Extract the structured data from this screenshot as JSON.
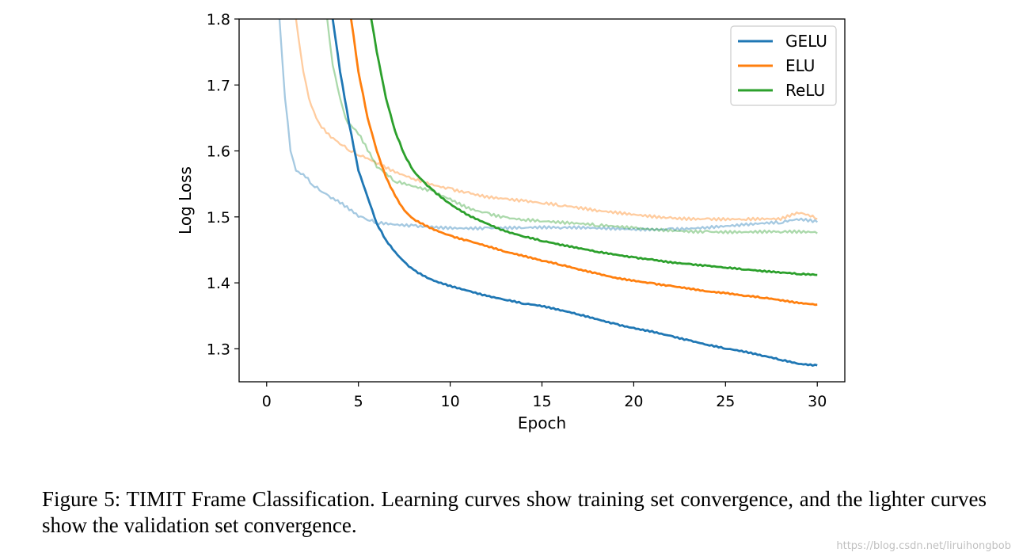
{
  "chart_data": {
    "type": "line",
    "title": "",
    "xlabel": "Epoch",
    "ylabel": "Log Loss",
    "xlim": [
      -1.5,
      31.5
    ],
    "ylim": [
      1.25,
      1.8
    ],
    "xticks": [
      0,
      5,
      10,
      15,
      20,
      25,
      30
    ],
    "yticks": [
      1.3,
      1.4,
      1.5,
      1.6,
      1.7,
      1.8
    ],
    "ytick_labels": [
      "1.3",
      "1.4",
      "1.5",
      "1.6",
      "1.7",
      "1.8"
    ],
    "legend_placement": "top-right",
    "grid": false,
    "series": [
      {
        "name": "GELU",
        "role": "training",
        "color": "#1f77b4",
        "x": [
          3.6,
          4.0,
          4.5,
          5.0,
          5.5,
          6.0,
          6.5,
          7.0,
          7.5,
          8.0,
          9.0,
          10.0,
          11.0,
          12.0,
          13.0,
          14.0,
          15.0,
          16.0,
          17.0,
          18.0,
          19.0,
          20.0,
          21.0,
          22.0,
          23.0,
          24.0,
          25.0,
          26.0,
          27.0,
          28.0,
          29.0,
          30.0
        ],
        "y": [
          1.8,
          1.72,
          1.64,
          1.57,
          1.53,
          1.49,
          1.465,
          1.447,
          1.432,
          1.42,
          1.405,
          1.396,
          1.388,
          1.38,
          1.374,
          1.368,
          1.364,
          1.358,
          1.352,
          1.345,
          1.338,
          1.332,
          1.327,
          1.32,
          1.313,
          1.306,
          1.3,
          1.295,
          1.289,
          1.283,
          1.277,
          1.275
        ]
      },
      {
        "name": "ELU",
        "role": "training",
        "color": "#ff7f0e",
        "x": [
          4.6,
          5.0,
          5.5,
          6.0,
          6.5,
          7.0,
          7.5,
          8.0,
          9.0,
          10.0,
          11.0,
          12.0,
          13.0,
          14.0,
          15.0,
          16.0,
          17.0,
          18.0,
          19.0,
          20.0,
          21.0,
          22.0,
          23.0,
          24.0,
          25.0,
          26.0,
          27.0,
          28.0,
          29.0,
          30.0
        ],
        "y": [
          1.8,
          1.72,
          1.65,
          1.6,
          1.56,
          1.532,
          1.51,
          1.497,
          1.483,
          1.472,
          1.464,
          1.456,
          1.447,
          1.44,
          1.433,
          1.427,
          1.42,
          1.414,
          1.408,
          1.404,
          1.4,
          1.396,
          1.392,
          1.387,
          1.384,
          1.38,
          1.377,
          1.373,
          1.369,
          1.367
        ]
      },
      {
        "name": "ReLU",
        "role": "training",
        "color": "#2ca02c",
        "x": [
          5.7,
          6.0,
          6.5,
          7.0,
          7.5,
          8.0,
          8.5,
          9.0,
          10.0,
          11.0,
          12.0,
          13.0,
          14.0,
          15.0,
          16.0,
          17.0,
          18.0,
          19.0,
          20.0,
          21.0,
          22.0,
          23.0,
          24.0,
          25.0,
          26.0,
          27.0,
          28.0,
          29.0,
          30.0
        ],
        "y": [
          1.8,
          1.75,
          1.68,
          1.63,
          1.595,
          1.57,
          1.555,
          1.542,
          1.52,
          1.503,
          1.49,
          1.478,
          1.47,
          1.463,
          1.457,
          1.452,
          1.447,
          1.443,
          1.439,
          1.436,
          1.432,
          1.429,
          1.426,
          1.423,
          1.42,
          1.417,
          1.415,
          1.413,
          1.412
        ]
      },
      {
        "name": "GELU",
        "role": "validation",
        "color": "#1f77b4",
        "x": [
          0.7,
          1.0,
          1.3,
          1.6,
          2.0,
          2.5,
          3.0,
          3.5,
          4.0,
          4.5,
          5.0,
          5.5,
          6.0,
          7.0,
          8.0,
          9.0,
          10.0,
          12.0,
          14.0,
          16.0,
          18.0,
          20.0,
          22.0,
          24.0,
          26.0,
          28.0,
          29.0,
          30.0
        ],
        "y": [
          1.8,
          1.68,
          1.6,
          1.57,
          1.565,
          1.548,
          1.538,
          1.528,
          1.52,
          1.51,
          1.5,
          1.495,
          1.49,
          1.488,
          1.487,
          1.486,
          1.485,
          1.484,
          1.483,
          1.482,
          1.482,
          1.482,
          1.483,
          1.485,
          1.487,
          1.49,
          1.495,
          1.492
        ]
      },
      {
        "name": "ELU",
        "role": "validation",
        "color": "#ff7f0e",
        "x": [
          1.6,
          2.0,
          2.3,
          2.7,
          3.0,
          3.5,
          4.0,
          4.5,
          5.0,
          6.0,
          7.0,
          8.0,
          9.0,
          10.0,
          11.0,
          12.0,
          13.0,
          14.0,
          15.0,
          16.0,
          17.0,
          18.0,
          20.0,
          22.0,
          24.0,
          26.0,
          28.0,
          29.0,
          30.0
        ],
        "y": [
          1.8,
          1.72,
          1.68,
          1.65,
          1.635,
          1.62,
          1.61,
          1.6,
          1.593,
          1.58,
          1.567,
          1.558,
          1.55,
          1.544,
          1.538,
          1.532,
          1.528,
          1.524,
          1.52,
          1.516,
          1.512,
          1.508,
          1.504,
          1.5,
          1.498,
          1.496,
          1.495,
          1.505,
          1.497
        ]
      },
      {
        "name": "ReLU",
        "role": "validation",
        "color": "#2ca02c",
        "x": [
          3.3,
          3.6,
          4.0,
          4.3,
          4.7,
          5.0,
          5.5,
          6.0,
          7.0,
          8.0,
          9.0,
          10.0,
          11.0,
          12.0,
          13.0,
          14.0,
          15.0,
          16.0,
          18.0,
          20.0,
          22.0,
          24.0,
          26.0,
          28.0,
          30.0
        ],
        "y": [
          1.8,
          1.73,
          1.68,
          1.65,
          1.635,
          1.625,
          1.6,
          1.575,
          1.553,
          1.546,
          1.54,
          1.528,
          1.515,
          1.507,
          1.5,
          1.496,
          1.493,
          1.49,
          1.486,
          1.483,
          1.481,
          1.479,
          1.477,
          1.476,
          1.475
        ]
      }
    ]
  },
  "caption": "Figure 5: TIMIT Frame Classification.  Learning curves show training set convergence, and the lighter curves show the validation set convergence.",
  "watermark": "https://blog.csdn.net/liruihongbob"
}
